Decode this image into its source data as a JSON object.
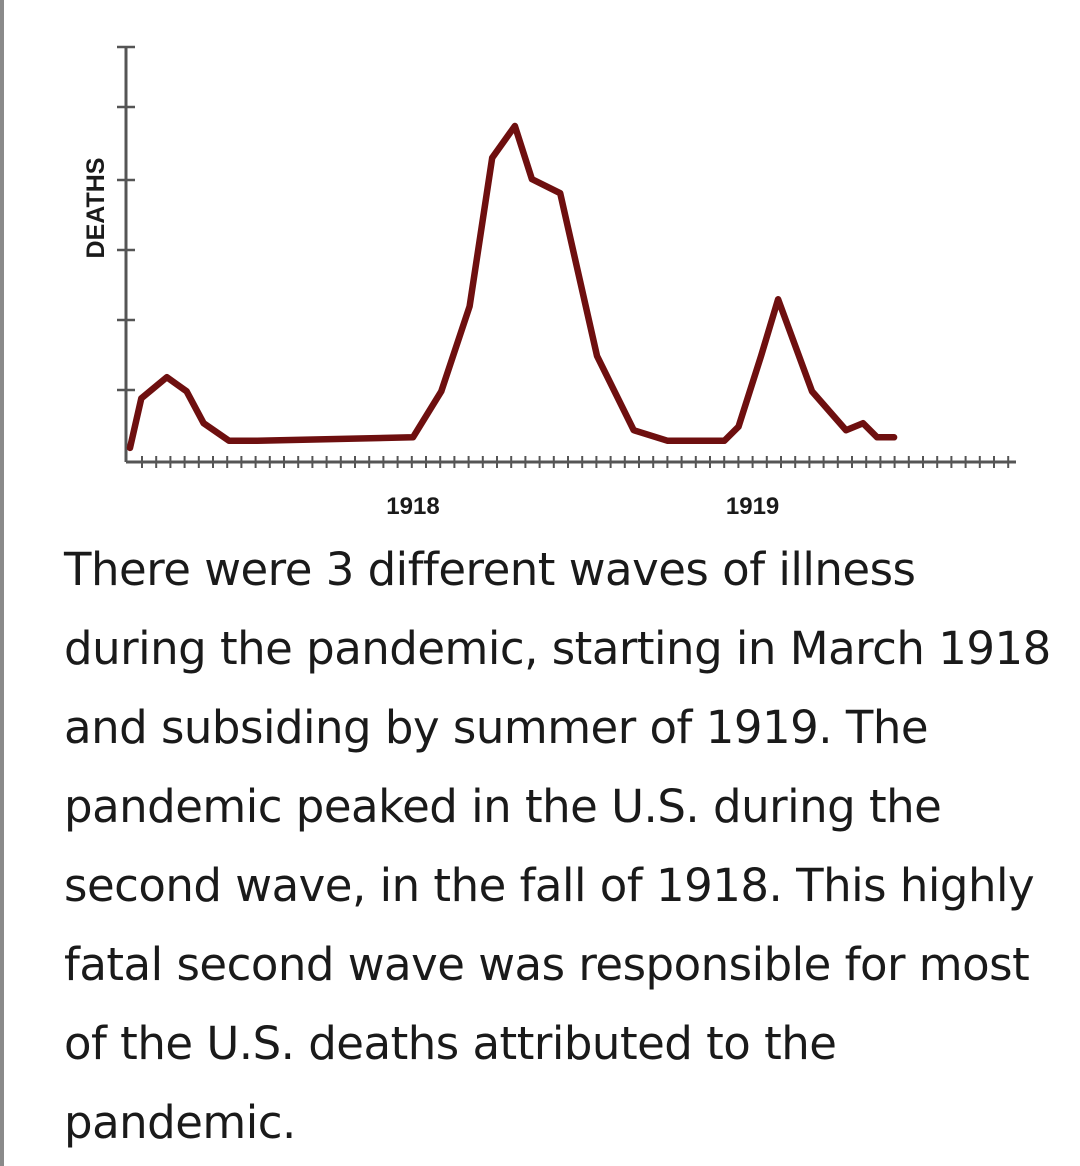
{
  "chart_data": {
    "type": "line",
    "title": "",
    "xlabel": "",
    "ylabel": "DEATHS",
    "x_ticks": [
      {
        "label": "1918",
        "x": 10
      },
      {
        "label": "1919",
        "x": 22
      }
    ],
    "xlim": [
      0,
      31
    ],
    "ylim": [
      0,
      6
    ],
    "y_tick_values": [
      0,
      1,
      2,
      3,
      4,
      5,
      6
    ],
    "grid": false,
    "legend": "none",
    "line_color": "#6e0f0f",
    "series": [
      {
        "name": "Deaths",
        "points": [
          [
            0,
            0.1
          ],
          [
            0.4,
            0.8
          ],
          [
            1.3,
            1.1
          ],
          [
            2.0,
            0.9
          ],
          [
            2.6,
            0.45
          ],
          [
            3.5,
            0.2
          ],
          [
            4.5,
            0.2
          ],
          [
            10.0,
            0.25
          ],
          [
            11.0,
            0.9
          ],
          [
            12.0,
            2.1
          ],
          [
            12.8,
            4.2
          ],
          [
            13.6,
            4.65
          ],
          [
            14.2,
            3.9
          ],
          [
            15.2,
            3.7
          ],
          [
            16.5,
            1.4
          ],
          [
            17.8,
            0.35
          ],
          [
            19.0,
            0.2
          ],
          [
            21.0,
            0.2
          ],
          [
            21.5,
            0.4
          ],
          [
            22.3,
            1.4
          ],
          [
            22.9,
            2.2
          ],
          [
            24.1,
            0.9
          ],
          [
            25.3,
            0.35
          ],
          [
            25.9,
            0.45
          ],
          [
            26.4,
            0.25
          ],
          [
            27.0,
            0.25
          ]
        ]
      }
    ]
  },
  "caption": {
    "text": "There were 3 different waves of illness during the pandemic, starting in March 1918 and subsiding by summer of 1919. The pandemic peaked in the U.S. during the second wave, in the fall of 1918. This highly fatal second wave was responsible for most of the U.S. deaths attributed to the pandemic."
  }
}
